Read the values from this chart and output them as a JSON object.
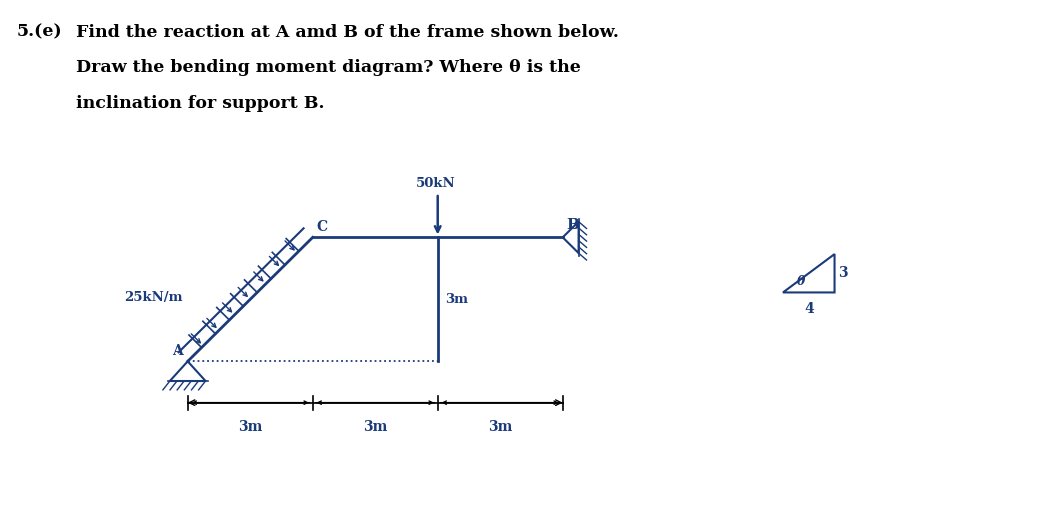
{
  "bg_color": "#ffffff",
  "text_color": "#1a3a7a",
  "frame_color": "#1a3a7a",
  "title_bold": "5.(e)",
  "title_line1": "  Find the reaction at A amd B of the frame shown below.",
  "title_line2": "        Draw the bending moment diagram? Where θ is the",
  "title_line3": "        inclination for support B.",
  "label_25kNm": "25kN/m",
  "label_50kN": "50kN",
  "label_A": "A",
  "label_B": "B",
  "label_C": "C",
  "label_3m_vert": "3m",
  "label_3m_1": "3m",
  "label_3m_2": "3m",
  "label_3m_3": "3m",
  "label_theta": "θ",
  "label_3": "3",
  "label_4": "4",
  "figsize": [
    10.54,
    5.18
  ],
  "dpi": 100
}
